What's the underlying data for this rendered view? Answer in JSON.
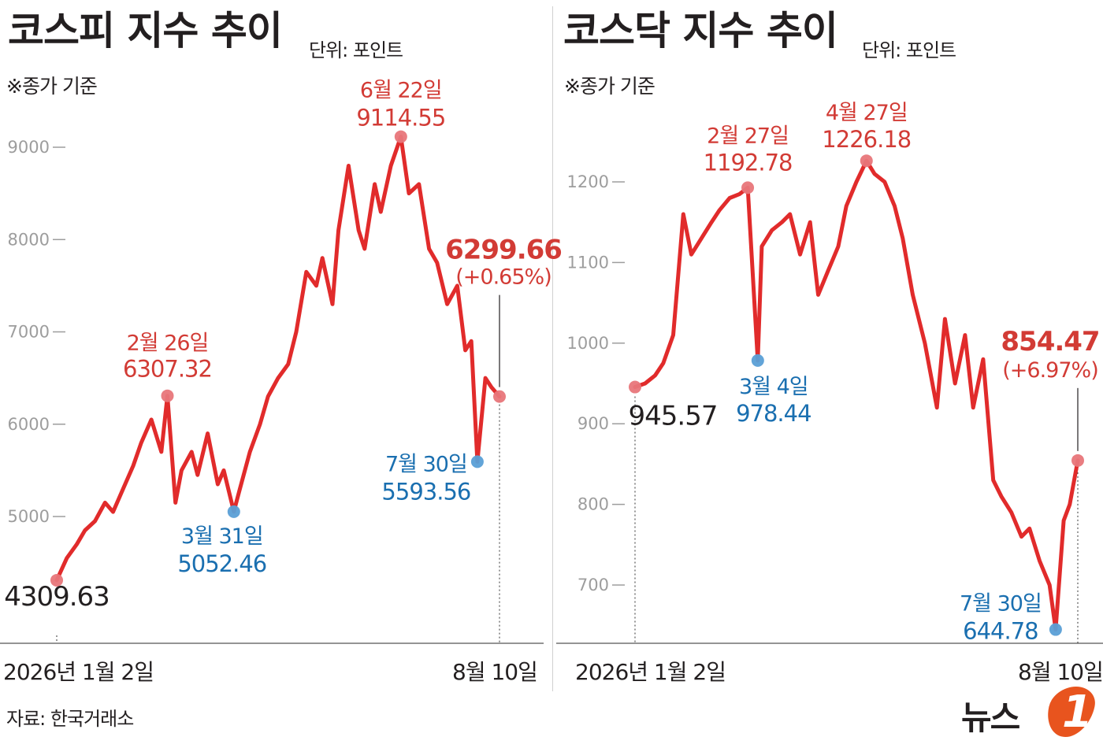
{
  "source": "자료: 한국거래소",
  "logo": {
    "text": "뉴스",
    "mark": "1"
  },
  "colors": {
    "line": "#e12b2b",
    "high": "#e8767a",
    "low": "#5a9fd6",
    "high_text": "#d23b35",
    "low_text": "#1a6fb0",
    "axis_tick": "#9d9d9d"
  },
  "chart_data": [
    {
      "type": "line",
      "title": "코스피 지수 추이",
      "unit": "단위: 포인트",
      "note": "※종가 기준",
      "x_start_label": "2026년 1월 2일",
      "x_end_label": "8월 10일",
      "ylim": [
        3700,
        9500
      ],
      "yticks": [
        5000,
        6000,
        7000,
        8000,
        9000
      ],
      "grid": false,
      "series": [
        {
          "x": [
            "2026-01-02",
            "2026-01-07",
            "2026-01-12",
            "2026-01-16",
            "2026-01-21",
            "2026-01-26",
            "2026-01-30",
            "2026-02-04",
            "2026-02-09",
            "2026-02-13",
            "2026-02-18",
            "2026-02-23",
            "2026-02-26",
            "2026-03-02",
            "2026-03-05",
            "2026-03-10",
            "2026-03-13",
            "2026-03-18",
            "2026-03-23",
            "2026-03-26",
            "2026-03-31",
            "2026-04-03",
            "2026-04-08",
            "2026-04-13",
            "2026-04-17",
            "2026-04-22",
            "2026-04-27",
            "2026-05-01",
            "2026-05-06",
            "2026-05-11",
            "2026-05-14",
            "2026-05-19",
            "2026-05-22",
            "2026-05-27",
            "2026-06-01",
            "2026-06-04",
            "2026-06-09",
            "2026-06-12",
            "2026-06-17",
            "2026-06-22",
            "2026-06-26",
            "2026-07-01",
            "2026-07-06",
            "2026-07-10",
            "2026-07-15",
            "2026-07-20",
            "2026-07-24",
            "2026-07-27",
            "2026-07-30",
            "2026-08-03",
            "2026-08-06",
            "2026-08-10"
          ],
          "y": [
            4309.63,
            4550,
            4700,
            4850,
            4950,
            5150,
            5050,
            5300,
            5550,
            5800,
            6050,
            5700,
            6307.32,
            5150,
            5500,
            5700,
            5450,
            5900,
            5350,
            5500,
            5052.46,
            5300,
            5700,
            6000,
            6300,
            6500,
            6650,
            7000,
            7650,
            7500,
            7800,
            7300,
            8100,
            8800,
            8100,
            7900,
            8600,
            8300,
            8800,
            9114.55,
            8500,
            8600,
            7900,
            7750,
            7300,
            7500,
            6800,
            6900,
            5593.56,
            6500,
            6400,
            6299.66
          ]
        }
      ],
      "annotations": [
        {
          "kind": "start",
          "x": "2026-01-02",
          "y": 4309.63,
          "label": "4309.63"
        },
        {
          "kind": "high",
          "x": "2026-02-26",
          "y": 6307.32,
          "date": "2월 26일",
          "label": "6307.32"
        },
        {
          "kind": "low",
          "x": "2026-03-31",
          "y": 5052.46,
          "date": "3월 31일",
          "label": "5052.46"
        },
        {
          "kind": "high",
          "x": "2026-06-22",
          "y": 9114.55,
          "date": "6월 22일",
          "label": "9114.55"
        },
        {
          "kind": "low",
          "x": "2026-07-30",
          "y": 5593.56,
          "date": "7월 30일",
          "label": "5593.56"
        },
        {
          "kind": "end",
          "x": "2026-08-10",
          "y": 6299.66,
          "label": "6299.66",
          "change": "(+0.65%)"
        }
      ]
    },
    {
      "type": "line",
      "title": "코스닥 지수 추이",
      "unit": "단위: 포인트",
      "note": "※종가 기준",
      "x_start_label": "2026년 1월 2일",
      "x_end_label": "8월 10일",
      "ylim": [
        610,
        1300
      ],
      "yticks": [
        700,
        800,
        900,
        1000,
        1100,
        1200
      ],
      "grid": false,
      "series": [
        {
          "x": [
            "2026-01-02",
            "2026-01-07",
            "2026-01-12",
            "2026-01-16",
            "2026-01-21",
            "2026-01-26",
            "2026-01-30",
            "2026-02-04",
            "2026-02-09",
            "2026-02-13",
            "2026-02-18",
            "2026-02-23",
            "2026-02-27",
            "2026-03-04",
            "2026-03-06",
            "2026-03-11",
            "2026-03-16",
            "2026-03-20",
            "2026-03-25",
            "2026-03-30",
            "2026-04-03",
            "2026-04-08",
            "2026-04-13",
            "2026-04-17",
            "2026-04-22",
            "2026-04-27",
            "2026-05-01",
            "2026-05-06",
            "2026-05-11",
            "2026-05-15",
            "2026-05-20",
            "2026-05-26",
            "2026-06-01",
            "2026-06-05",
            "2026-06-10",
            "2026-06-15",
            "2026-06-19",
            "2026-06-24",
            "2026-06-29",
            "2026-07-03",
            "2026-07-08",
            "2026-07-13",
            "2026-07-17",
            "2026-07-22",
            "2026-07-27",
            "2026-07-30",
            "2026-08-03",
            "2026-08-06",
            "2026-08-10"
          ],
          "y": [
            945.57,
            950,
            960,
            975,
            1010,
            1160,
            1110,
            1130,
            1150,
            1165,
            1180,
            1185,
            1192.78,
            978.44,
            1120,
            1140,
            1150,
            1160,
            1110,
            1150,
            1060,
            1090,
            1120,
            1170,
            1200,
            1226.18,
            1210,
            1200,
            1170,
            1130,
            1060,
            1000,
            920,
            1030,
            950,
            1010,
            920,
            980,
            830,
            810,
            790,
            760,
            770,
            730,
            700,
            644.78,
            780,
            800,
            854.47
          ]
        }
      ],
      "annotations": [
        {
          "kind": "start",
          "x": "2026-01-02",
          "y": 945.57,
          "label": "945.57"
        },
        {
          "kind": "high",
          "x": "2026-02-27",
          "y": 1192.78,
          "date": "2월 27일",
          "label": "1192.78"
        },
        {
          "kind": "low",
          "x": "2026-03-04",
          "y": 978.44,
          "date": "3월 4일",
          "label": "978.44"
        },
        {
          "kind": "high",
          "x": "2026-04-27",
          "y": 1226.18,
          "date": "4월 27일",
          "label": "1226.18"
        },
        {
          "kind": "low",
          "x": "2026-07-30",
          "y": 644.78,
          "date": "7월 30일",
          "label": "644.78"
        },
        {
          "kind": "end",
          "x": "2026-08-10",
          "y": 854.47,
          "label": "854.47",
          "change": "(+6.97%)"
        }
      ]
    }
  ]
}
